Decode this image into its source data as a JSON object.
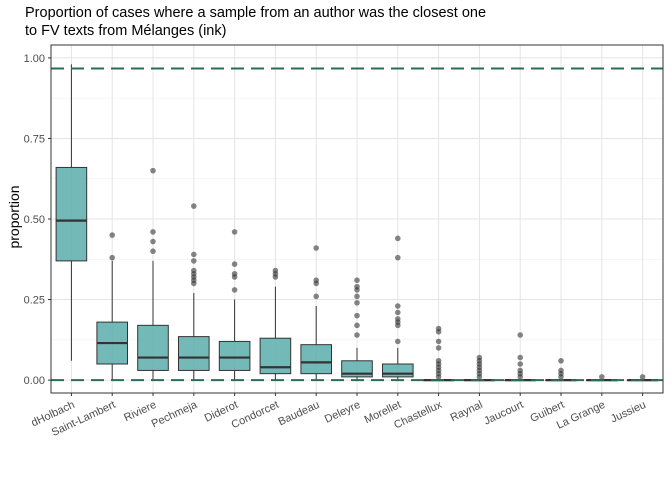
{
  "chart_data": {
    "type": "boxplot",
    "title_lines": [
      "Proportion of cases where a sample from an author was the closest one",
      "to FV texts from Mélanges (ink)"
    ],
    "xlabel": "",
    "ylabel": "proportion",
    "ylim": [
      -0.04,
      1.04
    ],
    "yticks": [
      0.0,
      0.25,
      0.5,
      0.75,
      1.0
    ],
    "ytick_labels": [
      "0.00",
      "0.25",
      "0.50",
      "0.75",
      "1.00"
    ],
    "grid": true,
    "reference_lines": [
      0.967,
      0.0
    ],
    "colors": {
      "box_fill": "#5aadaa",
      "box_edge": "#333333",
      "reference_line": "#2a6e54",
      "outlier": "#333333"
    },
    "categories": [
      "dHolbach",
      "Saint-Lambert",
      "Riviere",
      "Pechmeja",
      "Diderot",
      "Condorcet",
      "Baudeau",
      "Deleyre",
      "Morellet",
      "Chastellux",
      "Raynal",
      "Jaucourt",
      "Guibert",
      "La Grange",
      "Jussieu"
    ],
    "boxes": [
      {
        "q1": 0.37,
        "median": 0.495,
        "q3": 0.66,
        "whisker_low": 0.06,
        "whisker_high": 0.98,
        "outliers": []
      },
      {
        "q1": 0.05,
        "median": 0.115,
        "q3": 0.18,
        "whisker_low": 0.0,
        "whisker_high": 0.37,
        "outliers": [
          0.38,
          0.45
        ]
      },
      {
        "q1": 0.03,
        "median": 0.07,
        "q3": 0.17,
        "whisker_low": 0.0,
        "whisker_high": 0.37,
        "outliers": [
          0.4,
          0.43,
          0.46,
          0.65
        ]
      },
      {
        "q1": 0.03,
        "median": 0.07,
        "q3": 0.135,
        "whisker_low": 0.0,
        "whisker_high": 0.27,
        "outliers": [
          0.3,
          0.31,
          0.32,
          0.33,
          0.34,
          0.37,
          0.39,
          0.54
        ]
      },
      {
        "q1": 0.03,
        "median": 0.07,
        "q3": 0.12,
        "whisker_low": 0.0,
        "whisker_high": 0.25,
        "outliers": [
          0.28,
          0.32,
          0.33,
          0.36,
          0.46
        ]
      },
      {
        "q1": 0.02,
        "median": 0.04,
        "q3": 0.13,
        "whisker_low": 0.0,
        "whisker_high": 0.29,
        "outliers": [
          0.32,
          0.33,
          0.34
        ]
      },
      {
        "q1": 0.02,
        "median": 0.055,
        "q3": 0.11,
        "whisker_low": 0.0,
        "whisker_high": 0.23,
        "outliers": [
          0.26,
          0.3,
          0.31,
          0.41
        ]
      },
      {
        "q1": 0.01,
        "median": 0.02,
        "q3": 0.06,
        "whisker_low": 0.0,
        "whisker_high": 0.1,
        "outliers": [
          0.14,
          0.17,
          0.2,
          0.24,
          0.26,
          0.28,
          0.29,
          0.31
        ]
      },
      {
        "q1": 0.01,
        "median": 0.02,
        "q3": 0.05,
        "whisker_low": 0.0,
        "whisker_high": 0.1,
        "outliers": [
          0.12,
          0.17,
          0.18,
          0.19,
          0.21,
          0.23,
          0.38,
          0.44
        ]
      },
      {
        "q1": 0.0,
        "median": 0.0,
        "q3": 0.0,
        "whisker_low": 0.0,
        "whisker_high": 0.0,
        "outliers": [
          0.01,
          0.02,
          0.03,
          0.04,
          0.05,
          0.06,
          0.1,
          0.12,
          0.15,
          0.16
        ]
      },
      {
        "q1": 0.0,
        "median": 0.0,
        "q3": 0.0,
        "whisker_low": 0.0,
        "whisker_high": 0.0,
        "outliers": [
          0.01,
          0.02,
          0.03,
          0.04,
          0.05,
          0.06,
          0.07
        ]
      },
      {
        "q1": 0.0,
        "median": 0.0,
        "q3": 0.0,
        "whisker_low": 0.0,
        "whisker_high": 0.0,
        "outliers": [
          0.01,
          0.02,
          0.03,
          0.05,
          0.07,
          0.14
        ]
      },
      {
        "q1": 0.0,
        "median": 0.0,
        "q3": 0.0,
        "whisker_low": 0.0,
        "whisker_high": 0.0,
        "outliers": [
          0.01,
          0.02,
          0.03,
          0.06
        ]
      },
      {
        "q1": 0.0,
        "median": 0.0,
        "q3": 0.0,
        "whisker_low": 0.0,
        "whisker_high": 0.0,
        "outliers": [
          0.01
        ]
      },
      {
        "q1": 0.0,
        "median": 0.0,
        "q3": 0.0,
        "whisker_low": 0.0,
        "whisker_high": 0.0,
        "outliers": [
          0.01
        ]
      }
    ]
  }
}
